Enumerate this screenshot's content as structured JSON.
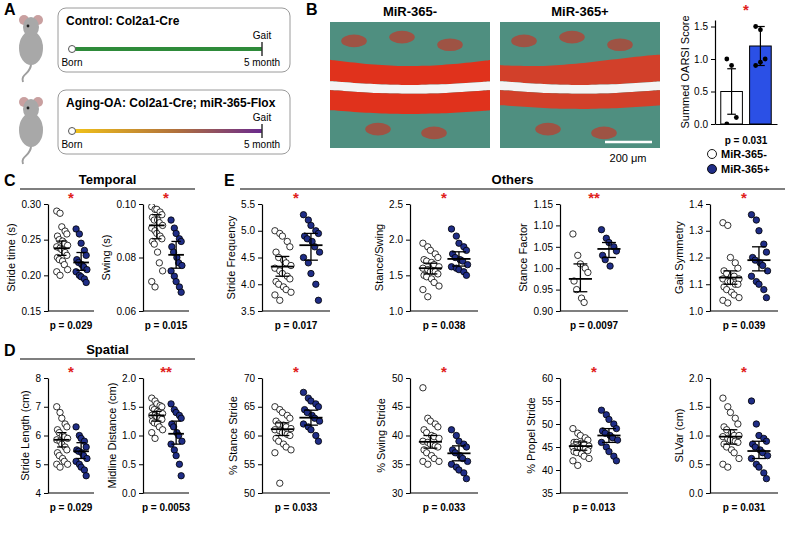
{
  "diagram": {
    "letter": "A",
    "rows": [
      {
        "title": "Control: Col2a1-Cre",
        "event": "Gait",
        "start": "Born",
        "end": "5 month"
      },
      {
        "title": "Aging-OA: Col2a1-Cre; miR-365-Flox",
        "event": "Gait",
        "start": "Born",
        "end": "5 month"
      }
    ]
  },
  "histology": {
    "letter": "B",
    "labels": [
      "MiR-365-",
      "MiR-365+"
    ],
    "scale_bar": "200 μm"
  },
  "sections": [
    {
      "letter": "C",
      "title": "Temporal"
    },
    {
      "letter": "D",
      "title": "Spatial"
    },
    {
      "letter": "E",
      "title": "Others"
    }
  ],
  "chart_data": [
    {
      "type": "bar",
      "y_label": "Summed OARSI Score",
      "categories": [
        null,
        null
      ],
      "values": [
        0.5,
        1.2
      ],
      "errors": [
        0.35,
        0.3
      ],
      "colors": [
        "#ffffff",
        "#2b50e6"
      ],
      "points": [
        [
          1.0,
          0.9,
          0.1,
          0.0
        ],
        [
          1.5,
          1.45,
          1.0,
          0.9,
          0.95
        ]
      ],
      "ylim": [
        0,
        1.6
      ],
      "yticks": [
        {
          "value": 0,
          "label": "0.0"
        },
        0.5,
        {
          "value": 1,
          "label": "1.0"
        },
        1.5
      ],
      "significance": "*",
      "p_text": "p = 0.031"
    },
    {
      "type": "strip",
      "y_label": "Stride time (s)",
      "ylim": [
        0.15,
        0.3
      ],
      "yticks": [
        0.15,
        {
          "value": 0.2,
          "label": "0.20"
        },
        0.25,
        {
          "value": 0.3,
          "label": "0.30"
        }
      ],
      "significance": "*",
      "p_text": "p = 0.029",
      "series": [
        {
          "name": "MiR-365-",
          "color": "#ffffff",
          "marker": "circle",
          "values": [
            0.29,
            0.287,
            0.268,
            0.262,
            0.258,
            0.255,
            0.25,
            0.248,
            0.245,
            0.242,
            0.24,
            0.238,
            0.236,
            0.232,
            0.228,
            0.225,
            0.222,
            0.22,
            0.215,
            0.208,
            0.205,
            0.2
          ],
          "mean": 0.238,
          "ci": [
            0.228,
            0.248
          ]
        },
        {
          "name": "MiR-365+",
          "color": "#1f2d86",
          "marker": "circle",
          "values": [
            0.265,
            0.258,
            0.245,
            0.235,
            0.228,
            0.222,
            0.218,
            0.215,
            0.212,
            0.208,
            0.205,
            0.2,
            0.198,
            0.195,
            0.19
          ],
          "mean": 0.218,
          "ci": [
            0.207,
            0.232
          ]
        }
      ]
    },
    {
      "type": "strip",
      "y_label": "Swing (s)",
      "ylim": [
        0.06,
        0.1
      ],
      "yticks": [
        0.06,
        0.08,
        {
          "value": 0.1,
          "label": "0.10"
        }
      ],
      "significance": "*",
      "p_text": "p = 0.015",
      "series": [
        {
          "name": "MiR-365-",
          "color": "#ffffff",
          "marker": "circle",
          "values": [
            0.099,
            0.098,
            0.098,
            0.097,
            0.096,
            0.095,
            0.094,
            0.094,
            0.093,
            0.092,
            0.091,
            0.09,
            0.089,
            0.088,
            0.087,
            0.086,
            0.085,
            0.082,
            0.078,
            0.075,
            0.071,
            0.069
          ],
          "mean": 0.092,
          "ci": [
            0.087,
            0.096
          ]
        },
        {
          "name": "MiR-365+",
          "color": "#1f2d86",
          "marker": "circle",
          "values": [
            0.094,
            0.091,
            0.089,
            0.087,
            0.086,
            0.084,
            0.082,
            0.08,
            0.078,
            0.077,
            0.075,
            0.073,
            0.071,
            0.069,
            0.067
          ],
          "mean": 0.081,
          "ci": [
            0.076,
            0.086
          ]
        }
      ]
    },
    {
      "type": "strip",
      "y_label": "Stride Length (cm)",
      "ylim": [
        4,
        8
      ],
      "yticks": [
        4,
        5,
        6,
        7,
        8
      ],
      "significance": "*",
      "p_text": "p = 0.029",
      "series": [
        {
          "name": "MiR-365-",
          "color": "#ffffff",
          "marker": "circle",
          "values": [
            7.0,
            6.8,
            6.6,
            6.4,
            6.3,
            6.2,
            6.1,
            6.0,
            5.95,
            5.9,
            5.85,
            5.8,
            5.7,
            5.6,
            5.5,
            5.4,
            5.3,
            5.2,
            5.1,
            5.0,
            5.0,
            4.9
          ],
          "mean": 5.85,
          "ci": [
            5.6,
            6.1
          ]
        },
        {
          "name": "MiR-365+",
          "color": "#1f2d86",
          "marker": "circle",
          "values": [
            6.3,
            6.0,
            5.9,
            5.8,
            5.6,
            5.5,
            5.45,
            5.4,
            5.3,
            5.2,
            5.1,
            5.0,
            4.9,
            4.8,
            4.6
          ],
          "mean": 5.45,
          "ci": [
            5.2,
            5.75
          ]
        }
      ]
    },
    {
      "type": "strip",
      "y_label": "Midline Distance (cm)",
      "ylim": [
        0,
        2
      ],
      "yticks": [
        {
          "value": 0,
          "label": "0.0"
        },
        0.5,
        {
          "value": 1,
          "label": "1.0"
        },
        1.5,
        {
          "value": 2,
          "label": "2.0"
        }
      ],
      "significance": "**",
      "p_text": "p = 0.0053",
      "series": [
        {
          "name": "MiR-365-",
          "color": "#ffffff",
          "marker": "circle",
          "values": [
            1.65,
            1.6,
            1.55,
            1.52,
            1.5,
            1.48,
            1.45,
            1.42,
            1.4,
            1.38,
            1.35,
            1.35,
            1.33,
            1.3,
            1.28,
            1.25,
            1.22,
            1.2,
            1.15,
            1.1,
            1.05,
            0.95
          ],
          "mean": 1.35,
          "ci": [
            1.25,
            1.42
          ]
        },
        {
          "name": "MiR-365+",
          "color": "#1f2d86",
          "marker": "circle",
          "values": [
            1.55,
            1.45,
            1.4,
            1.35,
            1.3,
            1.2,
            1.15,
            1.05,
            1.0,
            0.9,
            0.85,
            0.75,
            0.65,
            0.5,
            0.3
          ],
          "mean": 1.03,
          "ci": [
            0.85,
            1.25
          ]
        }
      ]
    },
    {
      "type": "strip",
      "y_label": "Stride Frequency",
      "ylim": [
        3.5,
        5.5
      ],
      "yticks": [
        3.5,
        {
          "value": 4,
          "label": "4.0"
        },
        4.5,
        {
          "value": 5,
          "label": "5.0"
        },
        5.5
      ],
      "significance": "*",
      "p_text": "p = 0.017",
      "series": [
        {
          "name": "MiR-365-",
          "color": "#ffffff",
          "marker": "circle",
          "values": [
            5.0,
            4.95,
            4.9,
            4.8,
            4.7,
            4.6,
            4.5,
            4.45,
            4.4,
            4.35,
            4.3,
            4.25,
            4.2,
            4.15,
            4.1,
            4.05,
            4.0,
            3.95,
            3.9,
            3.85,
            3.8,
            3.7
          ],
          "mean": 4.33,
          "ci": [
            4.15,
            4.52
          ]
        },
        {
          "name": "MiR-365+",
          "color": "#1f2d86",
          "marker": "circle",
          "values": [
            5.3,
            5.2,
            5.1,
            5.0,
            4.95,
            4.9,
            4.85,
            4.8,
            4.7,
            4.6,
            4.5,
            4.4,
            4.2,
            4.0,
            3.7
          ],
          "mean": 4.73,
          "ci": [
            4.45,
            4.95
          ]
        }
      ]
    },
    {
      "type": "strip",
      "y_label": "Stance/Swing",
      "ylim": [
        1,
        2.5
      ],
      "yticks": [
        {
          "value": 1,
          "label": "1.0"
        },
        1.5,
        {
          "value": 2,
          "label": "2.0"
        },
        2.5
      ],
      "significance": "*",
      "p_text": "p = 0.038",
      "series": [
        {
          "name": "MiR-365-",
          "color": "#ffffff",
          "marker": "circle",
          "values": [
            1.95,
            1.9,
            1.85,
            1.8,
            1.75,
            1.72,
            1.7,
            1.68,
            1.65,
            1.62,
            1.6,
            1.58,
            1.55,
            1.55,
            1.52,
            1.5,
            1.48,
            1.45,
            1.4,
            1.35,
            1.3,
            1.2
          ],
          "mean": 1.6,
          "ci": [
            1.52,
            1.67
          ]
        },
        {
          "name": "MiR-365+",
          "color": "#1f2d86",
          "marker": "circle",
          "values": [
            2.15,
            2.05,
            1.95,
            1.9,
            1.85,
            1.8,
            1.75,
            1.72,
            1.7,
            1.65,
            1.62,
            1.6,
            1.58,
            1.55,
            1.5
          ],
          "mean": 1.73,
          "ci": [
            1.63,
            1.83
          ]
        }
      ]
    },
    {
      "type": "strip",
      "y_label": "Stance Factor",
      "ylim": [
        0.9,
        1.15
      ],
      "yticks": [
        {
          "value": 0.9,
          "label": "0.90"
        },
        0.95,
        {
          "value": 1,
          "label": "1.00"
        },
        1.05,
        {
          "value": 1.1,
          "label": "1.10"
        },
        1.15
      ],
      "significance": "**",
      "p_text": "p = 0.0097",
      "series": [
        {
          "name": "MiR-365-",
          "color": "#ffffff",
          "marker": "circle",
          "values": [
            1.08,
            1.03,
            1.01,
            1.0,
            0.99,
            0.97,
            0.95,
            0.93,
            0.92
          ],
          "mean": 0.975,
          "ci": [
            0.945,
            1.01
          ]
        },
        {
          "name": "MiR-365+",
          "color": "#1f2d86",
          "marker": "circle",
          "values": [
            1.09,
            1.07,
            1.06,
            1.05,
            1.04,
            1.03,
            1.02,
            1.005
          ],
          "mean": 1.045,
          "ci": [
            1.025,
            1.06
          ]
        }
      ]
    },
    {
      "type": "strip",
      "y_label": "Gait Symmetry",
      "ylim": [
        1,
        1.4
      ],
      "yticks": [
        {
          "value": 1,
          "label": "1.0"
        },
        1.1,
        1.2,
        1.3,
        1.4
      ],
      "significance": "*",
      "p_text": "p = 0.039",
      "series": [
        {
          "name": "MiR-365-",
          "color": "#ffffff",
          "marker": "circle",
          "values": [
            1.33,
            1.32,
            1.2,
            1.18,
            1.16,
            1.15,
            1.14,
            1.13,
            1.13,
            1.12,
            1.12,
            1.11,
            1.11,
            1.1,
            1.1,
            1.09,
            1.08,
            1.07,
            1.06,
            1.05,
            1.04,
            1.03
          ],
          "mean": 1.125,
          "ci": [
            1.1,
            1.15
          ]
        },
        {
          "name": "MiR-365+",
          "color": "#1f2d86",
          "marker": "circle",
          "values": [
            1.36,
            1.34,
            1.3,
            1.25,
            1.22,
            1.2,
            1.19,
            1.18,
            1.17,
            1.15,
            1.13,
            1.11,
            1.1,
            1.08,
            1.05
          ],
          "mean": 1.19,
          "ci": [
            1.15,
            1.24
          ]
        }
      ]
    },
    {
      "type": "strip",
      "y_label": "% Stance Stride",
      "ylim": [
        50,
        70
      ],
      "yticks": [
        50,
        55,
        60,
        65,
        70
      ],
      "significance": "*",
      "p_text": "p = 0.033",
      "series": [
        {
          "name": "MiR-365-",
          "color": "#ffffff",
          "marker": "circle",
          "values": [
            65,
            64.5,
            64,
            63.5,
            63,
            62.5,
            62,
            61.8,
            61.5,
            61.2,
            61,
            60.8,
            60.5,
            60.2,
            60,
            59.5,
            59,
            58.5,
            58,
            57.5,
            57,
            51.7
          ],
          "mean": 61.1,
          "ci": [
            60.0,
            62.2
          ]
        },
        {
          "name": "MiR-365+",
          "color": "#1f2d86",
          "marker": "circle",
          "values": [
            67.5,
            66.5,
            66,
            65.5,
            65,
            64.5,
            64,
            63.5,
            63,
            62.5,
            62,
            61.5,
            61,
            60,
            59
          ],
          "mean": 63.1,
          "ci": [
            61.8,
            64.4
          ]
        }
      ]
    },
    {
      "type": "strip",
      "y_label": "% Swing Stride",
      "ylim": [
        30,
        50
      ],
      "yticks": [
        30,
        35,
        40,
        45,
        50
      ],
      "significance": "*",
      "p_text": "p = 0.033",
      "series": [
        {
          "name": "MiR-365-",
          "color": "#ffffff",
          "marker": "circle",
          "values": [
            48.3,
            43,
            42.5,
            42,
            41.5,
            41,
            40.5,
            40,
            39.8,
            39.5,
            39,
            38.8,
            38.5,
            38.2,
            38,
            37.5,
            37,
            36.5,
            36,
            35.5,
            35.5,
            35
          ],
          "mean": 38.9,
          "ci": [
            37.8,
            40.0
          ]
        },
        {
          "name": "MiR-365+",
          "color": "#1f2d86",
          "marker": "circle",
          "values": [
            41,
            40,
            39,
            38.5,
            38,
            37.5,
            37,
            36.5,
            36,
            35.5,
            35,
            34.5,
            34,
            33.5,
            32.5
          ],
          "mean": 36.9,
          "ci": [
            35.6,
            38.2
          ]
        }
      ]
    },
    {
      "type": "strip",
      "y_label": "% Propel Stride",
      "ylim": [
        35,
        60
      ],
      "yticks": [
        35,
        40,
        45,
        50,
        55,
        60
      ],
      "significance": "*",
      "p_text": "p = 0.013",
      "series": [
        {
          "name": "MiR-365-",
          "color": "#ffffff",
          "marker": "circle",
          "values": [
            49,
            48,
            47.5,
            47,
            46.5,
            46,
            46,
            45.8,
            45.5,
            45.2,
            45,
            45,
            44.8,
            44.5,
            44.2,
            44,
            43.8,
            43.5,
            43,
            42.5,
            42,
            41
          ],
          "mean": 45.2,
          "ci": [
            44.3,
            46.1
          ]
        },
        {
          "name": "MiR-365+",
          "color": "#1f2d86",
          "marker": "circle",
          "values": [
            53,
            52,
            51,
            50,
            49,
            48.5,
            48,
            47.5,
            47,
            46.5,
            46,
            45,
            44,
            43,
            42
          ],
          "mean": 47.5,
          "ci": [
            46.0,
            49.0
          ]
        }
      ]
    },
    {
      "type": "strip",
      "y_label": "SLVar (cm)",
      "ylim": [
        0,
        2
      ],
      "yticks": [
        {
          "value": 0,
          "label": "0.0"
        },
        0.5,
        {
          "value": 1,
          "label": "1.0"
        },
        1.5,
        {
          "value": 2,
          "label": "2.0"
        }
      ],
      "significance": "*",
      "p_text": "p = 0.031",
      "series": [
        {
          "name": "MiR-365-",
          "color": "#ffffff",
          "marker": "circle",
          "values": [
            1.65,
            1.5,
            1.4,
            1.3,
            1.2,
            1.15,
            1.1,
            1.05,
            1.0,
            1.0,
            0.98,
            0.95,
            0.92,
            0.9,
            0.88,
            0.85,
            0.8,
            0.75,
            0.7,
            0.6,
            0.5,
            0.45
          ],
          "mean": 0.98,
          "ci": [
            0.85,
            1.1
          ]
        },
        {
          "name": "MiR-365+",
          "color": "#1f2d86",
          "marker": "circle",
          "values": [
            1.6,
            1.2,
            1.0,
            0.95,
            0.9,
            0.85,
            0.8,
            0.75,
            0.7,
            0.65,
            0.6,
            0.5,
            0.45,
            0.35,
            0.25
          ],
          "mean": 0.73,
          "ci": [
            0.6,
            0.9
          ]
        }
      ]
    }
  ]
}
